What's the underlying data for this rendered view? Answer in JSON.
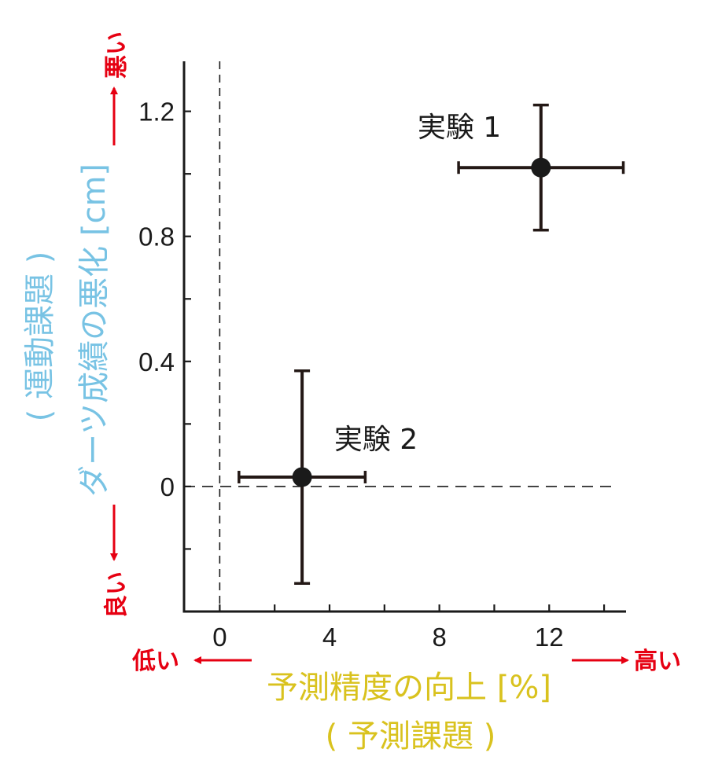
{
  "colors": {
    "axis": "#1a1a1a",
    "marker": "#1a1a1a",
    "errorbar": "#231815",
    "xlabel": "#d9c21e",
    "ylabel": "#78c3e4",
    "direction": "#e60012"
  },
  "chart_data": {
    "type": "scatter",
    "xlabel": "予測精度の向上 [%]",
    "xlabel_sub": "( 予測課題 )",
    "ylabel": "ダーツ成績の悪化 [cm]",
    "ylabel_sub": "( 運動課題 )",
    "xlim": [
      -1.3,
      14.8
    ],
    "ylim": [
      -0.4,
      1.36
    ],
    "xticks": [
      0,
      4,
      8,
      12
    ],
    "xtick_labels": [
      "0",
      "4",
      "8",
      "12"
    ],
    "xminor_ticks": [
      2,
      6,
      10,
      14
    ],
    "yticks": [
      0,
      0.4,
      0.8,
      1.2
    ],
    "ytick_labels": [
      "0",
      "0.4",
      "0.8",
      "1.2"
    ],
    "yminor_ticks": [
      -0.2,
      0.2,
      0.6,
      1.0
    ],
    "reference_lines": {
      "x": 0,
      "y": 0,
      "style": "dashed"
    },
    "grid": false,
    "points": [
      {
        "label": "実験 1",
        "x": 11.7,
        "y": 1.02,
        "xerr_low": 8.7,
        "xerr_high": 14.7,
        "yerr_low": 0.82,
        "yerr_high": 1.22
      },
      {
        "label": "実験 2",
        "x": 3.0,
        "y": 0.03,
        "xerr_low": 0.7,
        "xerr_high": 5.3,
        "yerr_low": -0.31,
        "yerr_high": 0.37
      }
    ],
    "direction_labels": {
      "x_low": "低い",
      "x_high": "高い",
      "y_low": "良い",
      "y_high": "悪い"
    }
  }
}
